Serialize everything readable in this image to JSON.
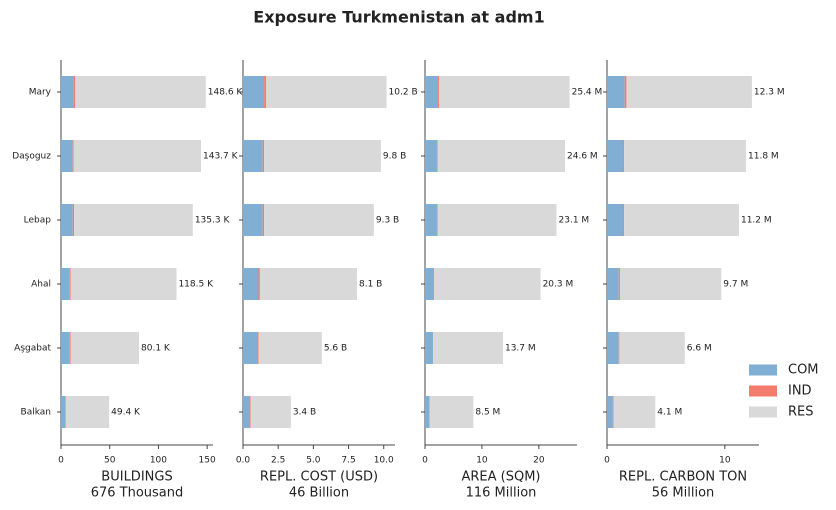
{
  "title": "Exposure Turkmenistan at adm1",
  "categories": [
    "Mary",
    "Daşoguz",
    "Lebap",
    "Ahal",
    "Aşgabat",
    "Balkan"
  ],
  "legend": [
    {
      "name": "COM",
      "color": "#81afd3"
    },
    {
      "name": "IND",
      "color": "#f47c6c"
    },
    {
      "name": "RES",
      "color": "#d9d9d9"
    }
  ],
  "chart_data": [
    {
      "type": "bar",
      "xlabel": "BUILDINGS",
      "xlabel_total": "676 Thousand",
      "xlim": [
        0,
        156
      ],
      "xticks": [
        0,
        50,
        100,
        150
      ],
      "series": [
        {
          "values": [
            13.0,
            12.0,
            12.0,
            9.0,
            9.0,
            4.5
          ]
        },
        {
          "values": [
            1.5,
            1.0,
            1.5,
            1.0,
            1.0,
            0.5
          ]
        },
        {
          "values": [
            134.1,
            130.7,
            121.8,
            108.5,
            70.1,
            44.4
          ]
        }
      ],
      "totals": [
        148.6,
        143.7,
        135.3,
        118.5,
        80.1,
        49.4
      ],
      "total_labels": [
        "148.6 K",
        "143.7 K",
        "135.3 K",
        "118.5 K",
        "80.1 K",
        "49.4 K"
      ]
    },
    {
      "type": "bar",
      "xlabel": "REPL. COST (USD)",
      "xlabel_total": "46 Billion",
      "xlim": [
        0,
        10.8
      ],
      "xticks": [
        {
          "value": 0,
          "label": "0.0"
        },
        2.5,
        {
          "value": 5,
          "label": "5.0"
        },
        7.5,
        {
          "value": 10,
          "label": "10.0"
        }
      ],
      "series": [
        {
          "values": [
            1.5,
            1.4,
            1.4,
            1.1,
            1.0,
            0.5
          ]
        },
        {
          "values": [
            0.15,
            0.1,
            0.1,
            0.1,
            0.1,
            0.05
          ]
        },
        {
          "values": [
            8.55,
            8.3,
            7.8,
            6.9,
            4.5,
            2.85
          ]
        }
      ],
      "totals": [
        10.2,
        9.8,
        9.3,
        8.1,
        5.6,
        3.4
      ],
      "total_labels": [
        "10.2 B",
        "9.8 B",
        "9.3 B",
        "8.1 B",
        "5.6 B",
        "3.4 B"
      ]
    },
    {
      "type": "bar",
      "xlabel": "AREA (SQM)",
      "xlabel_total": "116 Million",
      "xlim": [
        0,
        26.7
      ],
      "xticks": [
        0,
        10,
        20
      ],
      "series": [
        {
          "values": [
            2.3,
            2.1,
            2.1,
            1.5,
            1.4,
            0.8
          ]
        },
        {
          "values": [
            0.2,
            0.1,
            0.1,
            0.1,
            0.0,
            0.0
          ]
        },
        {
          "values": [
            22.9,
            22.4,
            20.9,
            18.7,
            12.3,
            7.7
          ]
        }
      ],
      "totals": [
        25.4,
        24.6,
        23.1,
        20.3,
        13.7,
        8.5
      ],
      "total_labels": [
        "25.4 M",
        "24.6 M",
        "23.1 M",
        "20.3 M",
        "13.7 M",
        "8.5 M"
      ]
    },
    {
      "type": "bar",
      "xlabel": "REPL. CARBON TON",
      "xlabel_total": "56 Million",
      "xlim": [
        0,
        12.9
      ],
      "xticks": [
        0,
        10
      ],
      "series": [
        {
          "values": [
            1.5,
            1.4,
            1.4,
            1.0,
            1.0,
            0.5
          ]
        },
        {
          "values": [
            0.15,
            0.05,
            0.05,
            0.1,
            0.05,
            0.05
          ]
        },
        {
          "values": [
            10.65,
            10.35,
            9.75,
            8.6,
            5.55,
            3.55
          ]
        }
      ],
      "totals": [
        12.3,
        11.8,
        11.2,
        9.7,
        6.6,
        4.1
      ],
      "total_labels": [
        "12.3 M",
        "11.8 M",
        "11.2 M",
        "9.7 M",
        "6.6 M",
        "4.1 M"
      ]
    }
  ]
}
